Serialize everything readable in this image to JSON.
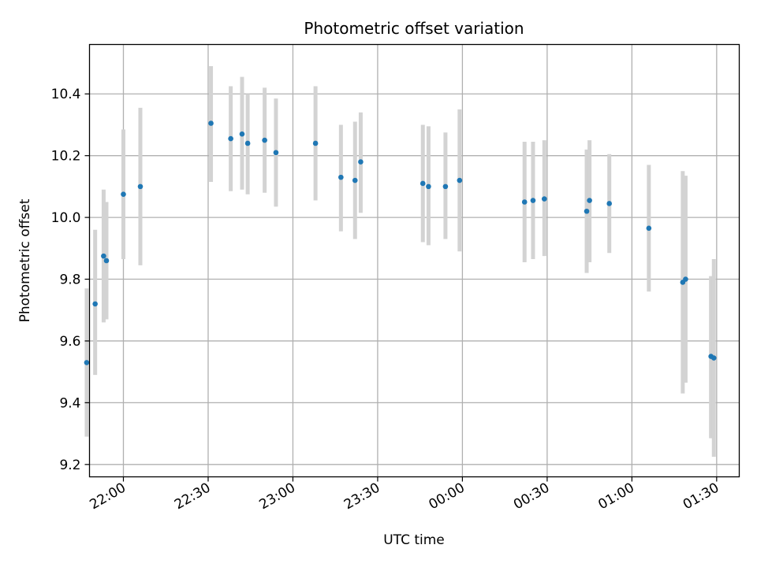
{
  "chart_data": {
    "type": "scatter",
    "title": "Photometric offset variation",
    "xlabel": "UTC time",
    "ylabel": "Photometric offset",
    "x_axis_kind": "time",
    "xlim": [
      "21:48",
      "01:38"
    ],
    "ylim": [
      9.16,
      10.56
    ],
    "grid": true,
    "x_ticks": [
      {
        "label": "22:00",
        "value": "22:00"
      },
      {
        "label": "22:30",
        "value": "22:30"
      },
      {
        "label": "23:00",
        "value": "23:00"
      },
      {
        "label": "23:30",
        "value": "23:30"
      },
      {
        "label": "00:00",
        "value": "00:00"
      },
      {
        "label": "00:30",
        "value": "00:30"
      },
      {
        "label": "01:00",
        "value": "01:00"
      },
      {
        "label": "01:30",
        "value": "01:30"
      }
    ],
    "y_ticks": [
      {
        "label": "9.2",
        "value": 9.2
      },
      {
        "label": "9.4",
        "value": 9.4
      },
      {
        "label": "9.6",
        "value": 9.6
      },
      {
        "label": "9.8",
        "value": 9.8
      },
      {
        "label": "10.0",
        "value": 10.0
      },
      {
        "label": "10.2",
        "value": 10.2
      },
      {
        "label": "10.4",
        "value": 10.4
      }
    ],
    "colors": {
      "point": "#1f77b4",
      "errorbar": "#d3d3d3",
      "grid": "#b0b0b0"
    },
    "series": [
      {
        "points": [
          {
            "x": "21:47",
            "y": 9.53,
            "ylo": 9.29,
            "yhi": 9.77
          },
          {
            "x": "21:50",
            "y": 9.72,
            "ylo": 9.49,
            "yhi": 9.96
          },
          {
            "x": "21:53",
            "y": 9.875,
            "ylo": 9.66,
            "yhi": 10.09
          },
          {
            "x": "21:54",
            "y": 9.86,
            "ylo": 9.67,
            "yhi": 10.05
          },
          {
            "x": "22:00",
            "y": 10.075,
            "ylo": 9.865,
            "yhi": 10.285
          },
          {
            "x": "22:06",
            "y": 10.1,
            "ylo": 9.845,
            "yhi": 10.355
          },
          {
            "x": "22:31",
            "y": 10.305,
            "ylo": 10.115,
            "yhi": 10.49
          },
          {
            "x": "22:38",
            "y": 10.255,
            "ylo": 10.085,
            "yhi": 10.425
          },
          {
            "x": "22:42",
            "y": 10.27,
            "ylo": 10.09,
            "yhi": 10.455
          },
          {
            "x": "22:44",
            "y": 10.24,
            "ylo": 10.075,
            "yhi": 10.4
          },
          {
            "x": "22:50",
            "y": 10.25,
            "ylo": 10.08,
            "yhi": 10.42
          },
          {
            "x": "22:54",
            "y": 10.21,
            "ylo": 10.035,
            "yhi": 10.385
          },
          {
            "x": "23:08",
            "y": 10.24,
            "ylo": 10.055,
            "yhi": 10.425
          },
          {
            "x": "23:17",
            "y": 10.13,
            "ylo": 9.955,
            "yhi": 10.3
          },
          {
            "x": "23:22",
            "y": 10.12,
            "ylo": 9.93,
            "yhi": 10.31
          },
          {
            "x": "23:24",
            "y": 10.18,
            "ylo": 10.015,
            "yhi": 10.34
          },
          {
            "x": "23:46",
            "y": 10.11,
            "ylo": 9.92,
            "yhi": 10.3
          },
          {
            "x": "23:48",
            "y": 10.1,
            "ylo": 9.91,
            "yhi": 10.295
          },
          {
            "x": "23:54",
            "y": 10.1,
            "ylo": 9.93,
            "yhi": 10.275
          },
          {
            "x": "23:59",
            "y": 10.12,
            "ylo": 9.89,
            "yhi": 10.35
          },
          {
            "x": "00:22",
            "y": 10.05,
            "ylo": 9.855,
            "yhi": 10.245
          },
          {
            "x": "00:25",
            "y": 10.055,
            "ylo": 9.865,
            "yhi": 10.245
          },
          {
            "x": "00:29",
            "y": 10.06,
            "ylo": 9.875,
            "yhi": 10.25
          },
          {
            "x": "00:44",
            "y": 10.02,
            "ylo": 9.82,
            "yhi": 10.22
          },
          {
            "x": "00:45",
            "y": 10.055,
            "ylo": 9.855,
            "yhi": 10.25
          },
          {
            "x": "00:52",
            "y": 10.045,
            "ylo": 9.885,
            "yhi": 10.205
          },
          {
            "x": "01:06",
            "y": 9.965,
            "ylo": 9.76,
            "yhi": 10.17
          },
          {
            "x": "01:18",
            "y": 9.79,
            "ylo": 9.43,
            "yhi": 10.15
          },
          {
            "x": "01:19",
            "y": 9.8,
            "ylo": 9.465,
            "yhi": 10.135
          },
          {
            "x": "01:28",
            "y": 9.55,
            "ylo": 9.285,
            "yhi": 9.81
          },
          {
            "x": "01:29",
            "y": 9.545,
            "ylo": 9.225,
            "yhi": 9.865
          }
        ]
      }
    ]
  }
}
